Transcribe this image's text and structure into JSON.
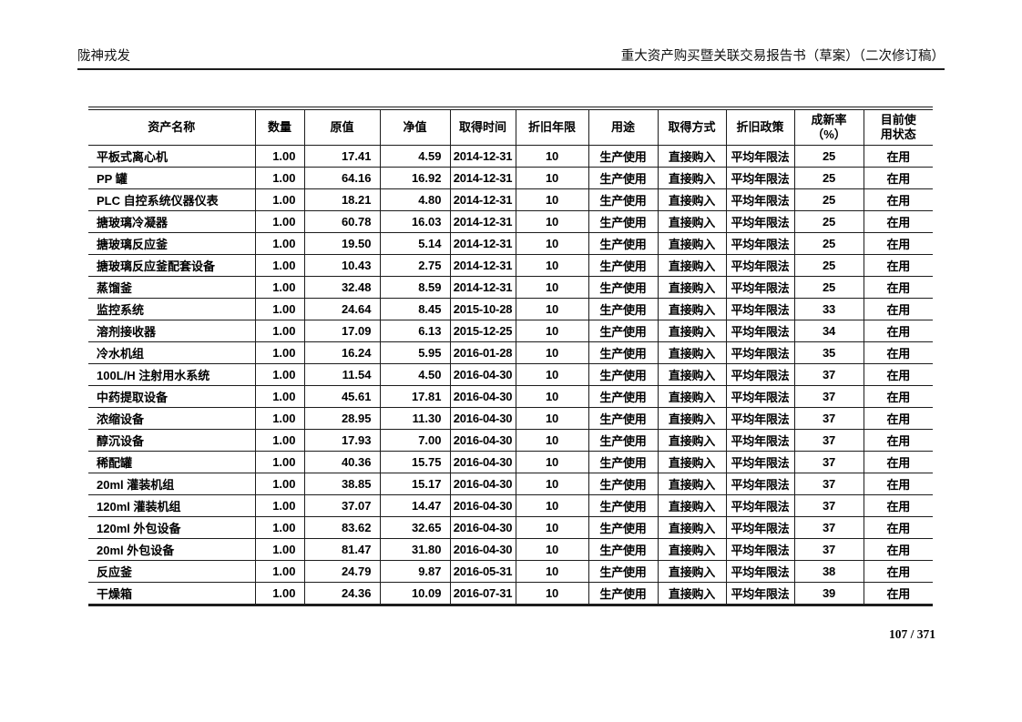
{
  "doc_header": {
    "left": "陇神戎发",
    "right": "重大资产购买暨关联交易报告书（草案）（二次修订稿）"
  },
  "table": {
    "columns": [
      {
        "key": "name",
        "label": "资产名称",
        "align": "left"
      },
      {
        "key": "qty",
        "label": "数量",
        "align": "right"
      },
      {
        "key": "orig",
        "label": "原值",
        "align": "right"
      },
      {
        "key": "net",
        "label": "净值",
        "align": "right"
      },
      {
        "key": "date",
        "label": "取得时间",
        "align": "center"
      },
      {
        "key": "years",
        "label": "折旧年限",
        "align": "center"
      },
      {
        "key": "usage",
        "label": "用途",
        "align": "center"
      },
      {
        "key": "method",
        "label": "取得方式",
        "align": "center"
      },
      {
        "key": "policy",
        "label": "折旧政策",
        "align": "center"
      },
      {
        "key": "rate",
        "label": "成新率\n（%）",
        "align": "center"
      },
      {
        "key": "status",
        "label": "目前使\n用状态",
        "align": "center"
      }
    ],
    "rows": [
      [
        "平板式离心机",
        "1.00",
        "17.41",
        "4.59",
        "2014-12-31",
        "10",
        "生产使用",
        "直接购入",
        "平均年限法",
        "25",
        "在用"
      ],
      [
        "PP 罐",
        "1.00",
        "64.16",
        "16.92",
        "2014-12-31",
        "10",
        "生产使用",
        "直接购入",
        "平均年限法",
        "25",
        "在用"
      ],
      [
        "PLC 自控系统仪器仪表",
        "1.00",
        "18.21",
        "4.80",
        "2014-12-31",
        "10",
        "生产使用",
        "直接购入",
        "平均年限法",
        "25",
        "在用"
      ],
      [
        "搪玻璃冷凝器",
        "1.00",
        "60.78",
        "16.03",
        "2014-12-31",
        "10",
        "生产使用",
        "直接购入",
        "平均年限法",
        "25",
        "在用"
      ],
      [
        "搪玻璃反应釜",
        "1.00",
        "19.50",
        "5.14",
        "2014-12-31",
        "10",
        "生产使用",
        "直接购入",
        "平均年限法",
        "25",
        "在用"
      ],
      [
        "搪玻璃反应釜配套设备",
        "1.00",
        "10.43",
        "2.75",
        "2014-12-31",
        "10",
        "生产使用",
        "直接购入",
        "平均年限法",
        "25",
        "在用"
      ],
      [
        "蒸馏釜",
        "1.00",
        "32.48",
        "8.59",
        "2014-12-31",
        "10",
        "生产使用",
        "直接购入",
        "平均年限法",
        "25",
        "在用"
      ],
      [
        "监控系统",
        "1.00",
        "24.64",
        "8.45",
        "2015-10-28",
        "10",
        "生产使用",
        "直接购入",
        "平均年限法",
        "33",
        "在用"
      ],
      [
        "溶剂接收器",
        "1.00",
        "17.09",
        "6.13",
        "2015-12-25",
        "10",
        "生产使用",
        "直接购入",
        "平均年限法",
        "34",
        "在用"
      ],
      [
        "冷水机组",
        "1.00",
        "16.24",
        "5.95",
        "2016-01-28",
        "10",
        "生产使用",
        "直接购入",
        "平均年限法",
        "35",
        "在用"
      ],
      [
        "100L/H 注射用水系统",
        "1.00",
        "11.54",
        "4.50",
        "2016-04-30",
        "10",
        "生产使用",
        "直接购入",
        "平均年限法",
        "37",
        "在用"
      ],
      [
        "中药提取设备",
        "1.00",
        "45.61",
        "17.81",
        "2016-04-30",
        "10",
        "生产使用",
        "直接购入",
        "平均年限法",
        "37",
        "在用"
      ],
      [
        "浓缩设备",
        "1.00",
        "28.95",
        "11.30",
        "2016-04-30",
        "10",
        "生产使用",
        "直接购入",
        "平均年限法",
        "37",
        "在用"
      ],
      [
        "醇沉设备",
        "1.00",
        "17.93",
        "7.00",
        "2016-04-30",
        "10",
        "生产使用",
        "直接购入",
        "平均年限法",
        "37",
        "在用"
      ],
      [
        "稀配罐",
        "1.00",
        "40.36",
        "15.75",
        "2016-04-30",
        "10",
        "生产使用",
        "直接购入",
        "平均年限法",
        "37",
        "在用"
      ],
      [
        "20ml 灌装机组",
        "1.00",
        "38.85",
        "15.17",
        "2016-04-30",
        "10",
        "生产使用",
        "直接购入",
        "平均年限法",
        "37",
        "在用"
      ],
      [
        "120ml 灌装机组",
        "1.00",
        "37.07",
        "14.47",
        "2016-04-30",
        "10",
        "生产使用",
        "直接购入",
        "平均年限法",
        "37",
        "在用"
      ],
      [
        "120ml 外包设备",
        "1.00",
        "83.62",
        "32.65",
        "2016-04-30",
        "10",
        "生产使用",
        "直接购入",
        "平均年限法",
        "37",
        "在用"
      ],
      [
        "20ml 外包设备",
        "1.00",
        "81.47",
        "31.80",
        "2016-04-30",
        "10",
        "生产使用",
        "直接购入",
        "平均年限法",
        "37",
        "在用"
      ],
      [
        "反应釜",
        "1.00",
        "24.79",
        "9.87",
        "2016-05-31",
        "10",
        "生产使用",
        "直接购入",
        "平均年限法",
        "38",
        "在用"
      ],
      [
        "干燥箱",
        "1.00",
        "24.36",
        "10.09",
        "2016-07-31",
        "10",
        "生产使用",
        "直接购入",
        "平均年限法",
        "39",
        "在用"
      ]
    ]
  },
  "footer": {
    "page_number": "107 / 371"
  }
}
